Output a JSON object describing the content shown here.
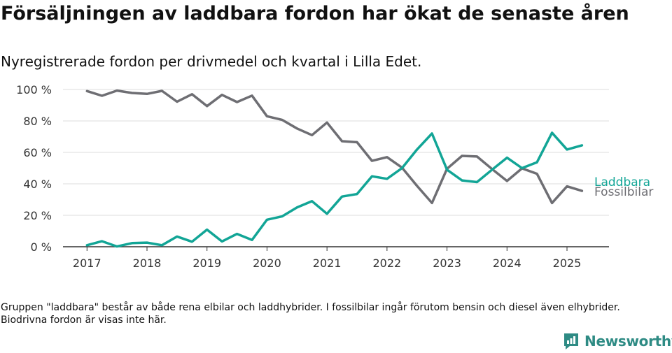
{
  "title": "Försäljningen av laddbara fordon har ökat de senaste åren",
  "subtitle": "Nyregistrerade fordon per drivmedel och kvartal i Lilla Edet.",
  "note": "Gruppen \"laddbara\" består av både rena elbilar och laddhybrider. I fossilbilar ingår förutom bensin och diesel även elhybrider. Biodrivna fordon är visas inte här.",
  "brand": "Newsworthy",
  "colors": {
    "laddbara": "#12a596",
    "fossil": "#6e6e73",
    "brand": "#2e8b84"
  },
  "chart_data": {
    "type": "line",
    "x_ticks": [
      2017,
      2018,
      2019,
      2020,
      2021,
      2022,
      2023,
      2024,
      2025
    ],
    "y_ticks": [
      "0 %",
      "20 %",
      "40 %",
      "60 %",
      "80 %",
      "100 %"
    ],
    "ylim": [
      0,
      100
    ],
    "xlim": [
      2016.6,
      2025.7
    ],
    "grid": true,
    "legend": "end-of-line labels",
    "x": [
      2017.0,
      2017.25,
      2017.5,
      2017.75,
      2018.0,
      2018.25,
      2018.5,
      2018.75,
      2019.0,
      2019.25,
      2019.5,
      2019.75,
      2020.0,
      2020.25,
      2020.5,
      2020.75,
      2021.0,
      2021.25,
      2021.5,
      2021.75,
      2022.0,
      2022.25,
      2022.5,
      2022.75,
      2023.0,
      2023.25,
      2023.5,
      2023.75,
      2024.0,
      2024.25,
      2024.5,
      2024.75,
      2025.0,
      2025.25
    ],
    "series": [
      {
        "name": "Laddbara",
        "color_key": "laddbara",
        "values": [
          1,
          3.5,
          0.2,
          2.3,
          2.6,
          1,
          6.5,
          3.2,
          10.9,
          3.4,
          8.2,
          4.3,
          17.2,
          19.3,
          25,
          29,
          21,
          31.9,
          33.5,
          44.8,
          43.2,
          50,
          61.8,
          72,
          49,
          42.2,
          41.1,
          49,
          56.6,
          50,
          53.7,
          72.5,
          61.8,
          64.5
        ]
      },
      {
        "name": "Fossilbilar",
        "color_key": "fossil",
        "values": [
          99,
          96,
          99.3,
          97.8,
          97.2,
          99.1,
          92.2,
          97,
          89.4,
          96.6,
          92,
          96.1,
          83,
          80.7,
          75.2,
          71,
          79,
          67.1,
          66.5,
          54.6,
          57,
          50.3,
          38.7,
          27.8,
          49.6,
          57.8,
          57.4,
          49.4,
          41.8,
          49.8,
          46.4,
          27.8,
          38.4,
          35.5
        ]
      }
    ]
  }
}
